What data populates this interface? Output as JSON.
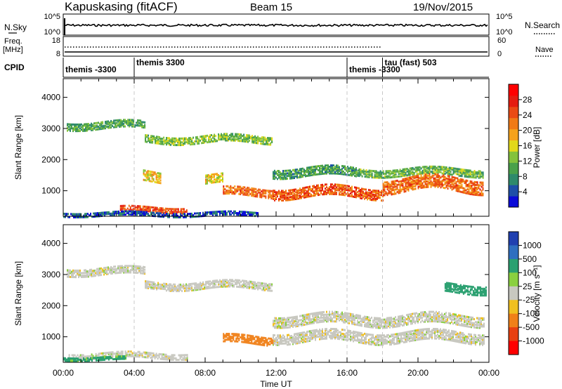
{
  "header": {
    "station": "Kapuskasing (fitACF)",
    "beam": "Beam 15",
    "date": "19/Nov/2015"
  },
  "noise_panel": {
    "left_label": "N.Sky",
    "right_label": "N.Search",
    "left_ticks": [
      "10^5",
      "10^0"
    ],
    "right_ticks": [
      "10^5",
      "10^0"
    ]
  },
  "freq_panel": {
    "left_label_1": "Freq.",
    "left_label_2": "[MHz]",
    "right_label": "Nave",
    "left_ticks": [
      "18",
      "8"
    ],
    "right_ticks": [
      "60",
      "0"
    ]
  },
  "cpid_panel": {
    "label": "CPID",
    "segments": [
      {
        "name": "themis -3300",
        "start_hour": 0.0
      },
      {
        "name": "themis 3300",
        "start_hour": 4.0
      },
      {
        "name": "themis -3300",
        "start_hour": 16.0
      },
      {
        "name": "tau (fast) 503",
        "start_hour": 18.0
      }
    ],
    "segment_end_hour": 24.0
  },
  "chart_data": [
    {
      "type": "heatmap",
      "title": "",
      "quantity": "Power",
      "xlabel": "",
      "ylabel": "Slant Range [km]",
      "xlim": [
        0,
        24
      ],
      "ylim": [
        180,
        4600
      ],
      "yticks": [
        "1000",
        "2000",
        "3000",
        "4000"
      ],
      "colorbar_label": "Power [dB]",
      "colorbar_ticks": [
        "4",
        "8",
        "12",
        "16",
        "20",
        "24",
        "28"
      ],
      "colorbar_colors": [
        "#0b0bd8",
        "#1e4fa8",
        "#2e8a6b",
        "#4aa14a",
        "#84c23c",
        "#e2d81a",
        "#f5a21c",
        "#f07a16",
        "#ea4a14",
        "#e51c10",
        "#ff0000"
      ],
      "regions": [
        {
          "start_hour": 0.2,
          "end_hour": 4.6,
          "center_km": 3150,
          "thickness_km": 250,
          "value": 12
        },
        {
          "start_hour": 4.6,
          "end_hour": 11.8,
          "center_km": 2700,
          "thickness_km": 250,
          "value": 14
        },
        {
          "start_hour": 11.8,
          "end_hour": 16.5,
          "center_km": 1650,
          "thickness_km": 300,
          "value": 11
        },
        {
          "start_hour": 16.5,
          "end_hour": 23.7,
          "center_km": 1650,
          "thickness_km": 250,
          "value": 13
        },
        {
          "start_hour": 3.2,
          "end_hour": 7.0,
          "center_km": 450,
          "thickness_km": 180,
          "value": 26
        },
        {
          "start_hour": 9.0,
          "end_hour": 11.8,
          "center_km": 1000,
          "thickness_km": 280,
          "value": 24
        },
        {
          "start_hour": 11.8,
          "end_hour": 18.0,
          "center_km": 1000,
          "thickness_km": 350,
          "value": 25
        },
        {
          "start_hour": 18.0,
          "end_hour": 23.7,
          "center_km": 1250,
          "thickness_km": 450,
          "value": 24
        },
        {
          "start_hour": 0.0,
          "end_hour": 11.0,
          "center_km": 300,
          "thickness_km": 150,
          "value": 6
        },
        {
          "start_hour": 4.5,
          "end_hour": 5.5,
          "center_km": 1500,
          "thickness_km": 350,
          "value": 18
        },
        {
          "start_hour": 8.0,
          "end_hour": 9.0,
          "center_km": 1400,
          "thickness_km": 300,
          "value": 18
        }
      ]
    },
    {
      "type": "heatmap",
      "title": "",
      "quantity": "Velocity",
      "xlabel": "Time UT",
      "ylabel": "Slant Range [km]",
      "xlim": [
        0,
        24
      ],
      "ylim": [
        180,
        4600
      ],
      "xticks": [
        "00:00",
        "04:00",
        "08:00",
        "12:00",
        "16:00",
        "20:00",
        "00:00"
      ],
      "yticks": [
        "1000",
        "2000",
        "3000",
        "4000"
      ],
      "colorbar_label": "Velocity [m s⁻¹]",
      "colorbar_ticks": [
        "1000",
        "500",
        "100",
        "25",
        "-25",
        "-100",
        "-500",
        "-1000"
      ],
      "colorbar_colors": [
        "#2040b0",
        "#2f6fc0",
        "#2aa070",
        "#8ad040",
        "#c8c8c0",
        "#f0c020",
        "#f08018",
        "#e84010",
        "#ff0000"
      ],
      "regions": [
        {
          "start_hour": 0.2,
          "end_hour": 4.6,
          "center_km": 3150,
          "thickness_km": 250,
          "value": 0
        },
        {
          "start_hour": 4.6,
          "end_hour": 11.8,
          "center_km": 2700,
          "thickness_km": 250,
          "value": 0
        },
        {
          "start_hour": 11.8,
          "end_hour": 23.7,
          "center_km": 1600,
          "thickness_km": 350,
          "value": 0
        },
        {
          "start_hour": 11.8,
          "end_hour": 23.7,
          "center_km": 1050,
          "thickness_km": 350,
          "value": 0
        },
        {
          "start_hour": 9.0,
          "end_hour": 11.8,
          "center_km": 950,
          "thickness_km": 280,
          "value": -250
        },
        {
          "start_hour": 0.3,
          "end_hour": 7.0,
          "center_km": 450,
          "thickness_km": 200,
          "value": 0
        },
        {
          "start_hour": 0.0,
          "end_hour": 3.5,
          "center_km": 350,
          "thickness_km": 120,
          "value": 80
        },
        {
          "start_hour": 21.5,
          "end_hour": 23.8,
          "center_km": 2600,
          "thickness_km": 300,
          "value": 100
        }
      ]
    }
  ]
}
